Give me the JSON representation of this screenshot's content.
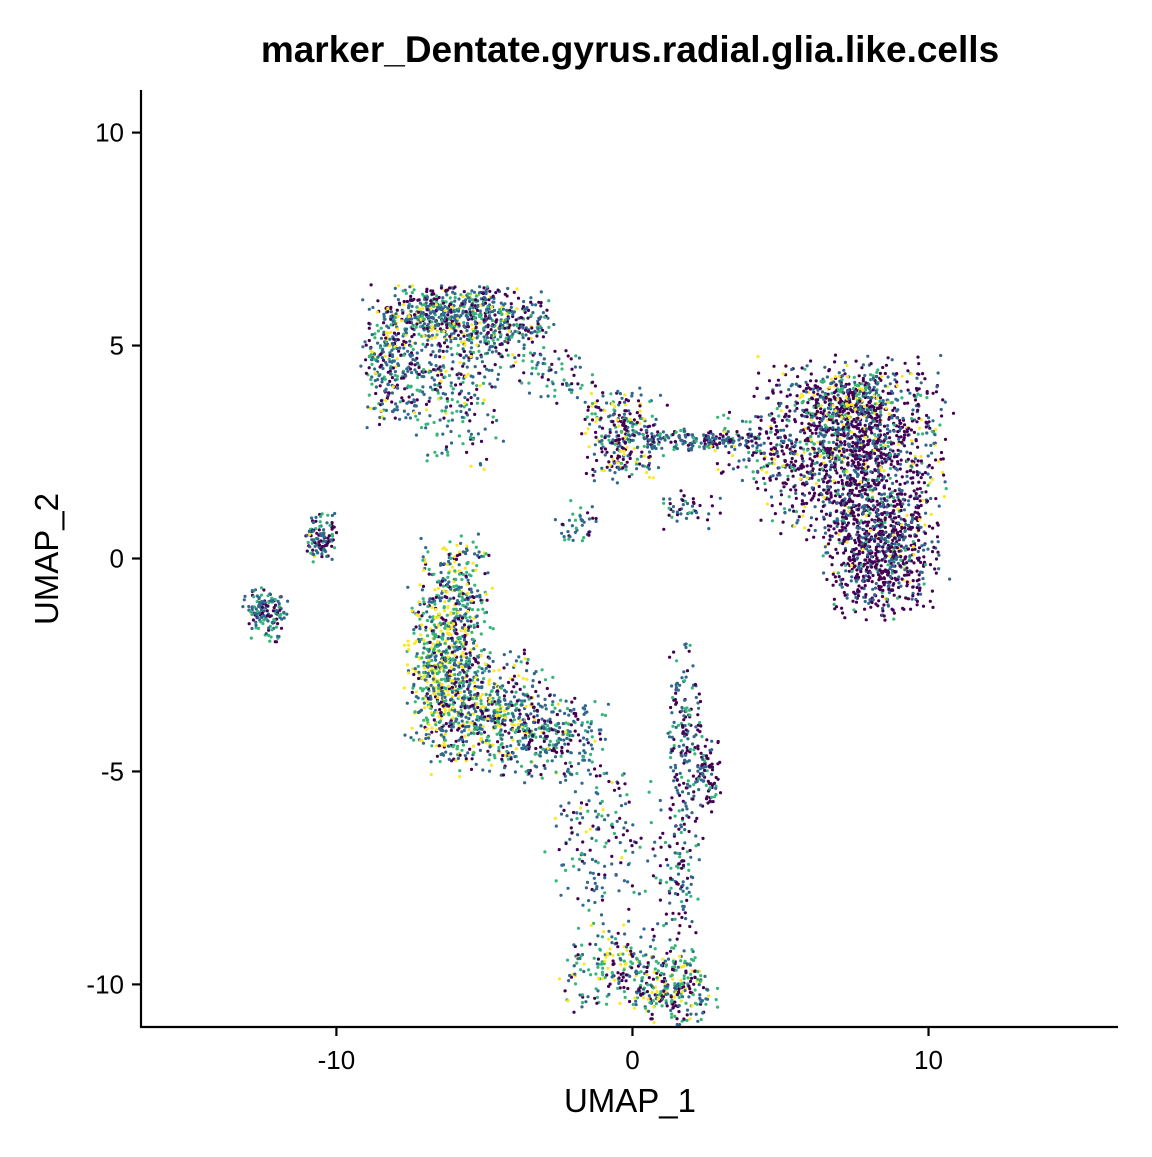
{
  "chart_data": {
    "type": "scatter",
    "title": "marker_Dentate.gyrus.radial.glia.like.cells",
    "xlabel": "UMAP_1",
    "ylabel": "UMAP_2",
    "xlim": [
      -16.6,
      16.4
    ],
    "ylim": [
      -11.0,
      11.0
    ],
    "xticks": [
      -10,
      0,
      10
    ],
    "xtick_labels": [
      "-10",
      "0",
      "10"
    ],
    "yticks": [
      -10,
      -5,
      0,
      5,
      10
    ],
    "ytick_labels": [
      "-10",
      "-5",
      "0",
      "5",
      "10"
    ],
    "grid": false,
    "legend": "none",
    "color_scale": "viridis",
    "palette": [
      "#440154",
      "#31688e",
      "#35b779",
      "#fde725"
    ],
    "series": [
      {
        "clusters": [
          {
            "center": [
              -6.5,
              5.7
            ],
            "spread": [
              1.1,
              0.35
            ],
            "n": 550,
            "mix": [
              0.25,
              0.45,
              0.2,
              0.1
            ]
          },
          {
            "center": [
              -4.3,
              5.4
            ],
            "spread": [
              0.8,
              0.45
            ],
            "n": 260,
            "mix": [
              0.3,
              0.4,
              0.22,
              0.08
            ]
          },
          {
            "center": [
              -8.2,
              4.6
            ],
            "spread": [
              0.45,
              0.7
            ],
            "n": 200,
            "mix": [
              0.25,
              0.45,
              0.2,
              0.1
            ]
          },
          {
            "center": [
              -6.6,
              4.3
            ],
            "spread": [
              1.0,
              0.55
            ],
            "n": 230,
            "mix": [
              0.25,
              0.45,
              0.2,
              0.1
            ]
          },
          {
            "center": [
              -2.6,
              4.3
            ],
            "spread": [
              0.8,
              0.3
            ],
            "n": 60,
            "mix": [
              0.3,
              0.5,
              0.2,
              0.0
            ]
          },
          {
            "center": [
              -5.9,
              3.0
            ],
            "spread": [
              0.7,
              0.6
            ],
            "n": 70,
            "mix": [
              0.2,
              0.4,
              0.3,
              0.1
            ]
          },
          {
            "center": [
              -0.3,
              2.9
            ],
            "spread": [
              0.65,
              0.55
            ],
            "n": 300,
            "mix": [
              0.35,
              0.35,
              0.15,
              0.15
            ]
          },
          {
            "center": [
              2.2,
              2.8
            ],
            "spread": [
              1.1,
              0.12
            ],
            "n": 160,
            "mix": [
              0.3,
              0.5,
              0.2,
              0.0
            ]
          },
          {
            "center": [
              4.3,
              2.6
            ],
            "spread": [
              0.9,
              0.4
            ],
            "n": 110,
            "mix": [
              0.35,
              0.45,
              0.15,
              0.05
            ]
          },
          {
            "center": [
              7.4,
              2.6
            ],
            "spread": [
              1.5,
              1.0
            ],
            "n": 1500,
            "mix": [
              0.55,
              0.27,
              0.1,
              0.08
            ]
          },
          {
            "center": [
              8.4,
              0.2
            ],
            "spread": [
              0.9,
              0.75
            ],
            "n": 800,
            "mix": [
              0.65,
              0.25,
              0.07,
              0.03
            ]
          },
          {
            "center": [
              7.2,
              3.7
            ],
            "spread": [
              0.8,
              0.3
            ],
            "n": 220,
            "mix": [
              0.35,
              0.3,
              0.15,
              0.2
            ]
          },
          {
            "center": [
              1.9,
              1.2
            ],
            "spread": [
              0.6,
              0.25
            ],
            "n": 45,
            "mix": [
              0.3,
              0.5,
              0.2,
              0.0
            ]
          },
          {
            "center": [
              -1.9,
              0.8
            ],
            "spread": [
              0.35,
              0.3
            ],
            "n": 40,
            "mix": [
              0.2,
              0.5,
              0.3,
              0.0
            ]
          },
          {
            "center": [
              -10.5,
              0.5
            ],
            "spread": [
              0.25,
              0.3
            ],
            "n": 110,
            "mix": [
              0.3,
              0.4,
              0.25,
              0.05
            ]
          },
          {
            "center": [
              -12.4,
              -1.3
            ],
            "spread": [
              0.35,
              0.3
            ],
            "n": 150,
            "mix": [
              0.2,
              0.5,
              0.3,
              0.0
            ]
          },
          {
            "center": [
              -6.0,
              -0.9
            ],
            "spread": [
              0.6,
              0.7
            ],
            "n": 280,
            "mix": [
              0.15,
              0.35,
              0.3,
              0.2
            ]
          },
          {
            "center": [
              -6.4,
              -2.6
            ],
            "spread": [
              0.6,
              0.9
            ],
            "n": 550,
            "mix": [
              0.15,
              0.3,
              0.3,
              0.25
            ]
          },
          {
            "center": [
              -5.0,
              -3.6
            ],
            "spread": [
              1.1,
              0.7
            ],
            "n": 600,
            "mix": [
              0.2,
              0.35,
              0.25,
              0.2
            ]
          },
          {
            "center": [
              -2.6,
              -4.2
            ],
            "spread": [
              0.9,
              0.5
            ],
            "n": 250,
            "mix": [
              0.2,
              0.45,
              0.3,
              0.05
            ]
          },
          {
            "center": [
              -1.0,
              -6.6
            ],
            "spread": [
              0.9,
              0.9
            ],
            "n": 170,
            "mix": [
              0.25,
              0.45,
              0.25,
              0.05
            ]
          },
          {
            "center": [
              1.8,
              -4.3
            ],
            "spread": [
              0.3,
              1.2
            ],
            "n": 190,
            "mix": [
              0.4,
              0.45,
              0.15,
              0.0
            ]
          },
          {
            "center": [
              2.6,
              -5.1
            ],
            "spread": [
              0.2,
              0.4
            ],
            "n": 70,
            "mix": [
              0.5,
              0.4,
              0.1,
              0.0
            ]
          },
          {
            "center": [
              1.5,
              -7.6
            ],
            "spread": [
              0.4,
              0.9
            ],
            "n": 110,
            "mix": [
              0.35,
              0.45,
              0.2,
              0.0
            ]
          },
          {
            "center": [
              -0.5,
              -9.6
            ],
            "spread": [
              0.9,
              0.5
            ],
            "n": 200,
            "mix": [
              0.25,
              0.25,
              0.3,
              0.2
            ]
          },
          {
            "center": [
              1.4,
              -10.1
            ],
            "spread": [
              0.7,
              0.4
            ],
            "n": 260,
            "mix": [
              0.35,
              0.25,
              0.25,
              0.15
            ]
          }
        ]
      }
    ]
  }
}
